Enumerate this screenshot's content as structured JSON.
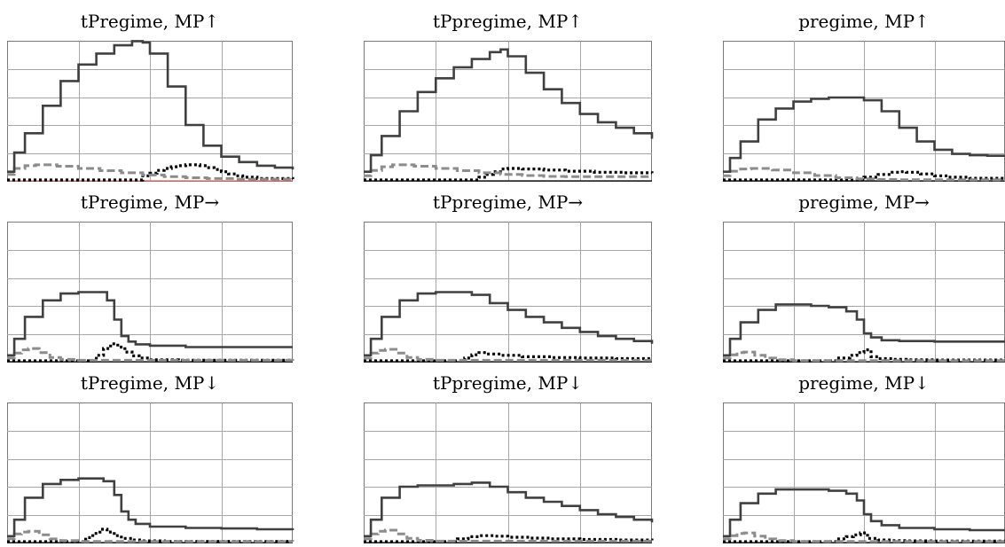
{
  "colors": {
    "solid": "#404040",
    "grey_dashed": "#8c8c8c",
    "black_dotted": "#000000",
    "grid": "#a6a6a6",
    "frame": "#7a7a7a",
    "baseline_accent": "#e06060"
  },
  "chart_data": [
    {
      "type": "line",
      "title": "tPregime, MP↑",
      "xlim": [
        0,
        4
      ],
      "ylim": [
        0,
        5
      ],
      "grid": true,
      "baseline_accent": true,
      "series": [
        {
          "style": "solid",
          "step": true,
          "x": [
            0,
            0.1,
            0.25,
            0.5,
            0.75,
            1.0,
            1.25,
            1.5,
            1.75,
            1.9,
            2.0,
            2.25,
            2.5,
            2.75,
            3.0,
            3.25,
            3.5,
            3.75,
            4.0
          ],
          "y": [
            0.3,
            1.0,
            1.7,
            2.7,
            3.6,
            4.2,
            4.6,
            4.9,
            5.05,
            5.0,
            4.6,
            3.4,
            2.0,
            1.25,
            0.85,
            0.65,
            0.52,
            0.45,
            0.38
          ]
        },
        {
          "style": "grey_dashed",
          "step": true,
          "x": [
            0,
            0.1,
            0.25,
            0.4,
            0.7,
            1.0,
            1.3,
            1.6,
            1.9,
            2.2,
            2.5,
            2.8,
            3.2,
            4.0
          ],
          "y": [
            0.2,
            0.42,
            0.52,
            0.55,
            0.5,
            0.42,
            0.34,
            0.26,
            0.18,
            0.12,
            0.08,
            0.05,
            0.03,
            0.02
          ]
        },
        {
          "style": "black_dotted",
          "step": true,
          "x": [
            0,
            1.8,
            1.9,
            2.0,
            2.1,
            2.2,
            2.3,
            2.4,
            2.5,
            2.6,
            2.7,
            2.8,
            2.9,
            3.0,
            3.1,
            3.2,
            3.3,
            3.5,
            4.0
          ],
          "y": [
            0.0,
            0.0,
            0.15,
            0.25,
            0.35,
            0.42,
            0.48,
            0.52,
            0.55,
            0.55,
            0.52,
            0.45,
            0.38,
            0.3,
            0.22,
            0.15,
            0.1,
            0.05,
            0.03
          ]
        }
      ]
    },
    {
      "type": "line",
      "title": "tPpregime, MP↑",
      "xlim": [
        0,
        4
      ],
      "ylim": [
        0,
        5
      ],
      "grid": true,
      "series": [
        {
          "style": "solid",
          "step": true,
          "x": [
            0,
            0.1,
            0.25,
            0.5,
            0.75,
            1.0,
            1.25,
            1.5,
            1.75,
            1.9,
            2.0,
            2.25,
            2.5,
            2.75,
            3.0,
            3.25,
            3.5,
            3.75,
            4.0
          ],
          "y": [
            0.3,
            0.9,
            1.6,
            2.5,
            3.2,
            3.7,
            4.1,
            4.4,
            4.65,
            4.75,
            4.5,
            3.9,
            3.3,
            2.8,
            2.4,
            2.1,
            1.9,
            1.7,
            1.5
          ]
        },
        {
          "style": "grey_dashed",
          "step": true,
          "x": [
            0,
            0.1,
            0.25,
            0.4,
            0.7,
            1.0,
            1.3,
            1.6,
            1.9,
            2.2,
            2.5,
            2.8,
            3.2,
            4.0
          ],
          "y": [
            0.15,
            0.35,
            0.48,
            0.55,
            0.5,
            0.42,
            0.34,
            0.26,
            0.2,
            0.16,
            0.13,
            0.12,
            0.12,
            0.12
          ]
        },
        {
          "style": "black_dotted",
          "step": true,
          "x": [
            0,
            1.5,
            1.6,
            1.7,
            1.8,
            1.9,
            2.0,
            2.2,
            2.5,
            2.8,
            3.2,
            3.6,
            4.0
          ],
          "y": [
            0.0,
            0.0,
            0.1,
            0.2,
            0.3,
            0.4,
            0.42,
            0.4,
            0.36,
            0.32,
            0.28,
            0.26,
            0.25
          ]
        }
      ]
    },
    {
      "type": "line",
      "title": "pregime, MP↑",
      "xlim": [
        0,
        4
      ],
      "ylim": [
        0,
        5
      ],
      "grid": true,
      "series": [
        {
          "style": "solid",
          "step": true,
          "x": [
            0,
            0.1,
            0.25,
            0.5,
            0.75,
            1.0,
            1.25,
            1.5,
            1.75,
            2.0,
            2.25,
            2.5,
            2.75,
            3.0,
            3.25,
            3.5,
            3.75,
            4.0
          ],
          "y": [
            0.3,
            0.8,
            1.4,
            2.2,
            2.6,
            2.85,
            2.95,
            3.0,
            3.0,
            2.9,
            2.5,
            1.9,
            1.4,
            1.1,
            0.95,
            0.9,
            0.88,
            0.86
          ]
        },
        {
          "style": "grey_dashed",
          "step": true,
          "x": [
            0,
            0.1,
            0.25,
            0.4,
            0.7,
            1.0,
            1.3,
            1.6,
            1.9,
            2.2,
            2.5,
            4.0
          ],
          "y": [
            0.15,
            0.32,
            0.4,
            0.42,
            0.36,
            0.26,
            0.16,
            0.08,
            0.04,
            0.02,
            0.01,
            0.0
          ]
        },
        {
          "style": "black_dotted",
          "step": true,
          "x": [
            0,
            1.9,
            2.0,
            2.2,
            2.4,
            2.5,
            2.6,
            2.8,
            3.0,
            3.2,
            3.5,
            4.0
          ],
          "y": [
            0.0,
            0.0,
            0.1,
            0.2,
            0.28,
            0.3,
            0.28,
            0.22,
            0.15,
            0.1,
            0.06,
            0.04
          ]
        }
      ]
    },
    {
      "type": "line",
      "title": "tPregime, MP→",
      "xlim": [
        0,
        4
      ],
      "ylim": [
        0,
        5
      ],
      "grid": true,
      "series": [
        {
          "style": "solid",
          "step": true,
          "x": [
            0,
            0.1,
            0.25,
            0.5,
            0.75,
            1.0,
            1.2,
            1.4,
            1.5,
            1.6,
            1.7,
            1.8,
            2.0,
            2.5,
            3.0,
            3.5,
            4.0
          ],
          "y": [
            0.2,
            0.8,
            1.6,
            2.2,
            2.45,
            2.5,
            2.5,
            2.2,
            1.5,
            0.9,
            0.7,
            0.6,
            0.55,
            0.5,
            0.5,
            0.5,
            0.5
          ]
        },
        {
          "style": "grey_dashed",
          "step": true,
          "x": [
            0,
            0.1,
            0.2,
            0.3,
            0.45,
            0.6,
            0.75,
            1.0,
            4.0
          ],
          "y": [
            0.1,
            0.28,
            0.4,
            0.45,
            0.3,
            0.12,
            0.05,
            0.02,
            0.0
          ]
        },
        {
          "style": "black_dotted",
          "step": true,
          "x": [
            0,
            1.15,
            1.25,
            1.35,
            1.45,
            1.55,
            1.65,
            1.75,
            1.85,
            2.0,
            2.4,
            4.0
          ],
          "y": [
            0.0,
            0.0,
            0.2,
            0.45,
            0.62,
            0.5,
            0.32,
            0.18,
            0.1,
            0.04,
            0.02,
            0.01
          ]
        }
      ]
    },
    {
      "type": "line",
      "title": "tPpregime, MP→",
      "xlim": [
        0,
        4
      ],
      "ylim": [
        0,
        5
      ],
      "grid": true,
      "series": [
        {
          "style": "solid",
          "step": true,
          "x": [
            0,
            0.1,
            0.25,
            0.5,
            0.75,
            1.0,
            1.25,
            1.5,
            1.75,
            2.0,
            2.25,
            2.5,
            2.75,
            3.0,
            3.25,
            3.5,
            3.75,
            4.0
          ],
          "y": [
            0.2,
            0.8,
            1.6,
            2.2,
            2.45,
            2.5,
            2.5,
            2.4,
            2.1,
            1.85,
            1.6,
            1.4,
            1.2,
            1.05,
            0.9,
            0.8,
            0.72,
            0.62
          ]
        },
        {
          "style": "grey_dashed",
          "step": true,
          "x": [
            0,
            0.1,
            0.2,
            0.3,
            0.45,
            0.6,
            0.75,
            1.0,
            4.0
          ],
          "y": [
            0.1,
            0.28,
            0.38,
            0.42,
            0.28,
            0.12,
            0.05,
            0.02,
            0.0
          ]
        },
        {
          "style": "black_dotted",
          "step": true,
          "x": [
            0,
            1.3,
            1.4,
            1.5,
            1.6,
            1.7,
            1.9,
            2.2,
            2.6,
            3.0,
            3.5,
            4.0
          ],
          "y": [
            0.0,
            0.0,
            0.1,
            0.22,
            0.3,
            0.25,
            0.2,
            0.15,
            0.12,
            0.1,
            0.08,
            0.06
          ]
        }
      ]
    },
    {
      "type": "line",
      "title": "pregime, MP→",
      "xlim": [
        0,
        4
      ],
      "ylim": [
        0,
        5
      ],
      "grid": true,
      "series": [
        {
          "style": "solid",
          "step": true,
          "x": [
            0,
            0.1,
            0.25,
            0.5,
            0.75,
            1.0,
            1.25,
            1.5,
            1.75,
            1.9,
            2.0,
            2.1,
            2.25,
            2.5,
            3.0,
            3.5,
            4.0
          ],
          "y": [
            0.2,
            0.8,
            1.4,
            1.85,
            2.05,
            2.05,
            2.0,
            1.95,
            1.8,
            1.5,
            1.0,
            0.85,
            0.75,
            0.72,
            0.7,
            0.7,
            0.68
          ]
        },
        {
          "style": "grey_dashed",
          "step": true,
          "x": [
            0,
            0.1,
            0.2,
            0.3,
            0.45,
            0.6,
            0.75,
            1.0,
            4.0
          ],
          "y": [
            0.1,
            0.22,
            0.3,
            0.32,
            0.2,
            0.1,
            0.04,
            0.01,
            0.0
          ]
        },
        {
          "style": "black_dotted",
          "step": true,
          "x": [
            0,
            1.4,
            1.6,
            1.8,
            1.9,
            2.0,
            2.1,
            2.2,
            2.4,
            2.6,
            3.0,
            4.0
          ],
          "y": [
            0.0,
            0.0,
            0.1,
            0.2,
            0.3,
            0.4,
            0.15,
            0.08,
            0.05,
            0.04,
            0.03,
            0.02
          ]
        }
      ]
    },
    {
      "type": "line",
      "title": "tPregime, MP↓",
      "xlim": [
        0,
        4
      ],
      "ylim": [
        0,
        5
      ],
      "grid": true,
      "series": [
        {
          "style": "solid",
          "step": true,
          "x": [
            0,
            0.1,
            0.25,
            0.5,
            0.75,
            1.0,
            1.2,
            1.35,
            1.5,
            1.6,
            1.7,
            1.8,
            2.0,
            2.5,
            3.0,
            3.5,
            4.0
          ],
          "y": [
            0.2,
            0.8,
            1.6,
            2.1,
            2.25,
            2.3,
            2.3,
            2.2,
            1.7,
            1.1,
            0.8,
            0.65,
            0.55,
            0.5,
            0.48,
            0.45,
            0.42
          ]
        },
        {
          "style": "grey_dashed",
          "step": true,
          "x": [
            0,
            0.1,
            0.2,
            0.3,
            0.45,
            0.6,
            0.75,
            1.0,
            4.0
          ],
          "y": [
            0.1,
            0.28,
            0.35,
            0.38,
            0.25,
            0.1,
            0.04,
            0.01,
            0.0
          ]
        },
        {
          "style": "black_dotted",
          "step": true,
          "x": [
            0,
            1.0,
            1.1,
            1.2,
            1.3,
            1.4,
            1.5,
            1.6,
            1.75,
            1.9,
            2.2,
            4.0
          ],
          "y": [
            0.0,
            0.0,
            0.15,
            0.3,
            0.45,
            0.35,
            0.22,
            0.12,
            0.06,
            0.03,
            0.01,
            0.01
          ]
        }
      ]
    },
    {
      "type": "line",
      "title": "tPpregime, MP↓",
      "xlim": [
        0,
        4
      ],
      "ylim": [
        0,
        5
      ],
      "grid": true,
      "series": [
        {
          "style": "solid",
          "step": true,
          "x": [
            0,
            0.1,
            0.25,
            0.5,
            0.75,
            1.0,
            1.25,
            1.5,
            1.75,
            2.0,
            2.25,
            2.5,
            2.75,
            3.0,
            3.25,
            3.5,
            3.75,
            4.0
          ],
          "y": [
            0.2,
            0.8,
            1.6,
            2.0,
            2.05,
            2.05,
            2.1,
            2.15,
            2.0,
            1.8,
            1.6,
            1.45,
            1.3,
            1.15,
            1.0,
            0.9,
            0.8,
            0.7
          ]
        },
        {
          "style": "grey_dashed",
          "step": true,
          "x": [
            0,
            0.1,
            0.2,
            0.3,
            0.45,
            0.6,
            0.75,
            1.0,
            4.0
          ],
          "y": [
            0.1,
            0.28,
            0.38,
            0.42,
            0.28,
            0.12,
            0.05,
            0.02,
            0.0
          ]
        },
        {
          "style": "black_dotted",
          "step": true,
          "x": [
            0,
            1.15,
            1.3,
            1.45,
            1.6,
            1.8,
            2.0,
            2.3,
            2.6,
            3.0,
            3.5,
            4.0
          ],
          "y": [
            0.0,
            0.0,
            0.1,
            0.18,
            0.22,
            0.2,
            0.16,
            0.13,
            0.1,
            0.08,
            0.06,
            0.05
          ]
        }
      ]
    },
    {
      "type": "line",
      "title": "pregime, MP↓",
      "xlim": [
        0,
        4
      ],
      "ylim": [
        0,
        5
      ],
      "grid": true,
      "series": [
        {
          "style": "solid",
          "step": true,
          "x": [
            0,
            0.1,
            0.25,
            0.5,
            0.75,
            1.0,
            1.25,
            1.5,
            1.75,
            1.9,
            2.0,
            2.1,
            2.25,
            2.5,
            3.0,
            3.5,
            4.0
          ],
          "y": [
            0.2,
            0.8,
            1.4,
            1.75,
            1.9,
            1.9,
            1.9,
            1.85,
            1.75,
            1.5,
            1.0,
            0.75,
            0.6,
            0.5,
            0.45,
            0.42,
            0.4
          ]
        },
        {
          "style": "grey_dashed",
          "step": true,
          "x": [
            0,
            0.1,
            0.2,
            0.3,
            0.45,
            0.6,
            0.75,
            1.0,
            4.0
          ],
          "y": [
            0.1,
            0.22,
            0.3,
            0.32,
            0.2,
            0.1,
            0.04,
            0.01,
            0.0
          ]
        },
        {
          "style": "black_dotted",
          "step": true,
          "x": [
            0,
            1.4,
            1.6,
            1.75,
            1.85,
            1.95,
            2.05,
            2.2,
            2.4,
            2.6,
            3.0,
            4.0
          ],
          "y": [
            0.0,
            0.0,
            0.1,
            0.18,
            0.25,
            0.32,
            0.12,
            0.06,
            0.04,
            0.03,
            0.02,
            0.02
          ]
        }
      ]
    }
  ]
}
